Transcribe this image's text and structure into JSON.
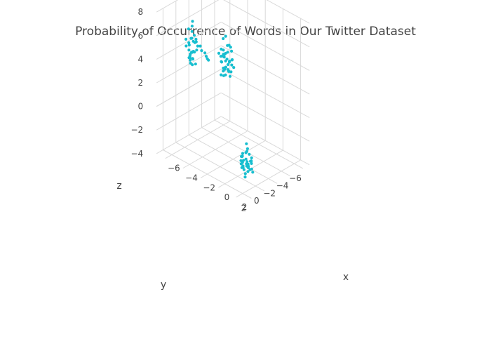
{
  "chart_data": {
    "type": "scatter3d",
    "title": "Probability of Occurrence of Words in Our Twitter Dataset",
    "axes": {
      "x": {
        "label": "x",
        "ticks": [
          -6,
          -4,
          -2,
          0,
          2
        ],
        "range": [
          -7,
          3
        ]
      },
      "y": {
        "label": "y",
        "ticks": [
          -6,
          -4,
          -2,
          0,
          2
        ],
        "range": [
          -7,
          3
        ]
      },
      "z": {
        "label": "z",
        "ticks": [
          -4,
          -2,
          0,
          2,
          4,
          6,
          8
        ],
        "range": [
          -4,
          8
        ]
      }
    },
    "marker_color": "#17becf",
    "grid": true,
    "points": [
      {
        "x": -4.1,
        "y": -3.7,
        "z": 2.4
      },
      {
        "x": -3.8,
        "y": -3.9,
        "z": 2.9
      },
      {
        "x": -4.3,
        "y": -4.0,
        "z": 3.4
      },
      {
        "x": -3.9,
        "y": -3.3,
        "z": 3.7
      },
      {
        "x": -4.0,
        "y": -3.6,
        "z": 3.0
      },
      {
        "x": -4.6,
        "y": -3.8,
        "z": 2.6
      },
      {
        "x": -3.5,
        "y": -3.9,
        "z": 3.2
      },
      {
        "x": -4.2,
        "y": -3.5,
        "z": 2.1
      },
      {
        "x": -3.8,
        "y": -4.1,
        "z": 4.1
      },
      {
        "x": -4.4,
        "y": -3.4,
        "z": 3.3
      },
      {
        "x": -3.7,
        "y": -3.7,
        "z": 2.2
      },
      {
        "x": -4.0,
        "y": -4.2,
        "z": 2.8
      },
      {
        "x": -4.5,
        "y": -3.6,
        "z": 3.8
      },
      {
        "x": -3.6,
        "y": -3.4,
        "z": 2.5
      },
      {
        "x": -4.1,
        "y": -3.2,
        "z": 3.5
      },
      {
        "x": -3.9,
        "y": -4.3,
        "z": 1.9
      },
      {
        "x": -4.2,
        "y": -3.9,
        "z": 2.3
      },
      {
        "x": -3.7,
        "y": -3.5,
        "z": 3.9
      },
      {
        "x": -4.3,
        "y": -3.7,
        "z": 1.6
      },
      {
        "x": -3.8,
        "y": -3.6,
        "z": 4.4
      },
      {
        "x": -4.4,
        "y": -4.0,
        "z": 2.0
      },
      {
        "x": -4.0,
        "y": -3.8,
        "z": 3.1
      },
      {
        "x": -3.6,
        "y": -4.0,
        "z": 2.7
      },
      {
        "x": -4.1,
        "y": -3.4,
        "z": 3.6
      },
      {
        "x": -4.6,
        "y": -4.2,
        "z": 2.9
      },
      {
        "x": -3.4,
        "y": -3.8,
        "z": 3.3
      },
      {
        "x": -4.2,
        "y": -4.4,
        "z": 4.0
      },
      {
        "x": -3.9,
        "y": -3.1,
        "z": 2.6
      },
      {
        "x": -4.3,
        "y": -3.3,
        "z": 1.8
      },
      {
        "x": -3.7,
        "y": -4.1,
        "z": 3.8
      },
      {
        "x": -4.7,
        "y": -3.5,
        "z": 3.4
      },
      {
        "x": -4.0,
        "y": -3.6,
        "z": 5.1
      },
      {
        "x": -3.8,
        "y": -3.3,
        "z": 2.0
      },
      {
        "x": -4.1,
        "y": -4.1,
        "z": 2.5
      },
      {
        "x": -4.5,
        "y": -3.9,
        "z": 4.6
      },
      {
        "x": -3.5,
        "y": -3.6,
        "z": 1.9
      },
      {
        "x": -4.4,
        "y": -3.8,
        "z": 3.7
      },
      {
        "x": -3.9,
        "y": -3.9,
        "z": 2.1
      },
      {
        "x": -4.2,
        "y": -3.2,
        "z": 3.0
      },
      {
        "x": -3.6,
        "y": -4.3,
        "z": 2.4
      },
      {
        "x": -4.2,
        "y": 1.3,
        "z": 5.2
      },
      {
        "x": -4.4,
        "y": 1.5,
        "z": 5.8
      },
      {
        "x": -4.0,
        "y": 1.0,
        "z": 6.3
      },
      {
        "x": -3.8,
        "y": 1.6,
        "z": 5.5
      },
      {
        "x": -4.5,
        "y": 1.2,
        "z": 4.9
      },
      {
        "x": -3.9,
        "y": 1.4,
        "z": 6.8
      },
      {
        "x": -4.1,
        "y": 1.8,
        "z": 5.1
      },
      {
        "x": -4.6,
        "y": 1.1,
        "z": 4.5
      },
      {
        "x": -4.3,
        "y": 1.7,
        "z": 6.1
      },
      {
        "x": -3.7,
        "y": 1.3,
        "z": 5.6
      },
      {
        "x": -4.2,
        "y": 0.9,
        "z": 5.9
      },
      {
        "x": -4.0,
        "y": 1.9,
        "z": 4.8
      },
      {
        "x": -4.4,
        "y": 1.6,
        "z": 7.2
      },
      {
        "x": -3.9,
        "y": 1.2,
        "z": 4.3
      },
      {
        "x": -4.1,
        "y": 1.5,
        "z": 6.5
      },
      {
        "x": -4.5,
        "y": 1.4,
        "z": 5.3
      },
      {
        "x": -3.8,
        "y": 1.8,
        "z": 5.0
      },
      {
        "x": -4.3,
        "y": 1.0,
        "z": 6.0
      },
      {
        "x": -4.0,
        "y": 1.6,
        "z": 7.6
      },
      {
        "x": -4.2,
        "y": 1.2,
        "z": 4.6
      },
      {
        "x": -3.6,
        "y": 1.5,
        "z": 6.4
      },
      {
        "x": -4.6,
        "y": 1.7,
        "z": 5.7
      },
      {
        "x": -4.1,
        "y": 1.1,
        "z": 5.2
      },
      {
        "x": -3.9,
        "y": 1.9,
        "z": 6.7
      },
      {
        "x": -4.4,
        "y": 1.3,
        "z": 4.2
      },
      {
        "x": -4.0,
        "y": 1.4,
        "z": 5.4
      },
      {
        "x": -4.7,
        "y": 1.6,
        "z": 6.2
      },
      {
        "x": -3.8,
        "y": 1.0,
        "z": 5.8
      },
      {
        "x": -4.2,
        "y": 1.8,
        "z": 4.9
      },
      {
        "x": -4.3,
        "y": 1.2,
        "z": 6.9
      },
      {
        "x": -3.3,
        "y": 1.3,
        "z": 6.1
      },
      {
        "x": -3.0,
        "y": 1.5,
        "z": 5.9
      },
      {
        "x": -2.7,
        "y": 1.4,
        "z": 5.8
      },
      {
        "x": -2.4,
        "y": 1.6,
        "z": 5.7
      },
      {
        "x": -2.2,
        "y": 1.7,
        "z": 5.6
      },
      {
        "x": -2.0,
        "y": 1.8,
        "z": 5.6
      },
      {
        "x": -4.1,
        "y": 1.4,
        "z": 7.9
      },
      {
        "x": -3.9,
        "y": 1.7,
        "z": 4.4
      },
      {
        "x": -4.5,
        "y": 1.0,
        "z": 5.0
      },
      {
        "x": 0.9,
        "y": -0.1,
        "z": -2.6
      },
      {
        "x": 1.2,
        "y": 0.2,
        "z": -2.2
      },
      {
        "x": 0.7,
        "y": -0.3,
        "z": -1.8
      },
      {
        "x": 1.0,
        "y": 0.4,
        "z": -2.9
      },
      {
        "x": 1.4,
        "y": -0.2,
        "z": -2.4
      },
      {
        "x": 0.6,
        "y": 0.1,
        "z": -2.0
      },
      {
        "x": 1.1,
        "y": -0.4,
        "z": -3.1
      },
      {
        "x": 0.8,
        "y": 0.3,
        "z": -2.7
      },
      {
        "x": 1.3,
        "y": 0.0,
        "z": -1.6
      },
      {
        "x": 0.9,
        "y": 0.5,
        "z": -2.3
      },
      {
        "x": 1.5,
        "y": -0.1,
        "z": -2.8
      },
      {
        "x": 0.5,
        "y": -0.2,
        "z": -2.5
      },
      {
        "x": 1.0,
        "y": 0.2,
        "z": -3.3
      },
      {
        "x": 1.2,
        "y": -0.5,
        "z": -2.1
      },
      {
        "x": 0.7,
        "y": 0.4,
        "z": -1.9
      },
      {
        "x": 1.4,
        "y": 0.3,
        "z": -2.6
      },
      {
        "x": 0.8,
        "y": -0.3,
        "z": -2.9
      },
      {
        "x": 1.1,
        "y": 0.1,
        "z": -1.4
      },
      {
        "x": 0.6,
        "y": 0.0,
        "z": -3.0
      },
      {
        "x": 1.3,
        "y": -0.3,
        "z": -2.3
      },
      {
        "x": 0.9,
        "y": 0.6,
        "z": -2.7
      },
      {
        "x": 1.6,
        "y": 0.1,
        "z": -2.0
      },
      {
        "x": 0.4,
        "y": -0.1,
        "z": -2.2
      },
      {
        "x": 1.0,
        "y": -0.6,
        "z": -2.5
      },
      {
        "x": 1.2,
        "y": 0.5,
        "z": -3.4
      },
      {
        "x": 0.7,
        "y": 0.2,
        "z": -1.7
      },
      {
        "x": 1.5,
        "y": 0.4,
        "z": -2.4
      },
      {
        "x": 0.8,
        "y": -0.5,
        "z": -2.8
      },
      {
        "x": 1.1,
        "y": 0.0,
        "z": -1.2
      },
      {
        "x": 1.3,
        "y": 0.2,
        "z": -3.0
      },
      {
        "x": 0.9,
        "y": -0.1,
        "z": -0.9
      },
      {
        "x": 0.6,
        "y": 0.3,
        "z": -2.6
      },
      {
        "x": 1.4,
        "y": -0.4,
        "z": -3.2
      },
      {
        "x": 1.0,
        "y": 0.1,
        "z": -2.1
      },
      {
        "x": 0.5,
        "y": 0.2,
        "z": -2.4
      }
    ]
  }
}
